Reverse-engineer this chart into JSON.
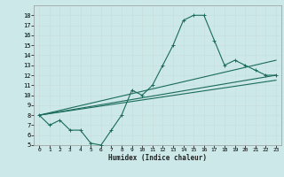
{
  "xlabel": "Humidex (Indice chaleur)",
  "bg_color": "#cce8e8",
  "grid_color": "#c8dede",
  "line_color": "#1a6b5a",
  "xlim": [
    -0.5,
    23.5
  ],
  "ylim": [
    5,
    19
  ],
  "xticks": [
    0,
    1,
    2,
    3,
    4,
    5,
    6,
    7,
    8,
    9,
    10,
    11,
    12,
    13,
    14,
    15,
    16,
    17,
    18,
    19,
    20,
    21,
    22,
    23
  ],
  "yticks": [
    5,
    6,
    7,
    8,
    9,
    10,
    11,
    12,
    13,
    14,
    15,
    16,
    17,
    18
  ],
  "series1_x": [
    0,
    1,
    2,
    3,
    4,
    5,
    6,
    7,
    8,
    9,
    10,
    11,
    12,
    13,
    14,
    15,
    16,
    17,
    18,
    19,
    20,
    21,
    22,
    23
  ],
  "series1_y": [
    8,
    7,
    7.5,
    6.5,
    6.5,
    5.2,
    5,
    6.5,
    8,
    10.5,
    10,
    11,
    13,
    15,
    17.5,
    18,
    18,
    15.5,
    13,
    13.5,
    13,
    12.5,
    12,
    12
  ],
  "series2_x": [
    0,
    23
  ],
  "series2_y": [
    8,
    12
  ],
  "series3_x": [
    0,
    23
  ],
  "series3_y": [
    8,
    11.5
  ],
  "series4_x": [
    0,
    23
  ],
  "series4_y": [
    8,
    13.5
  ]
}
